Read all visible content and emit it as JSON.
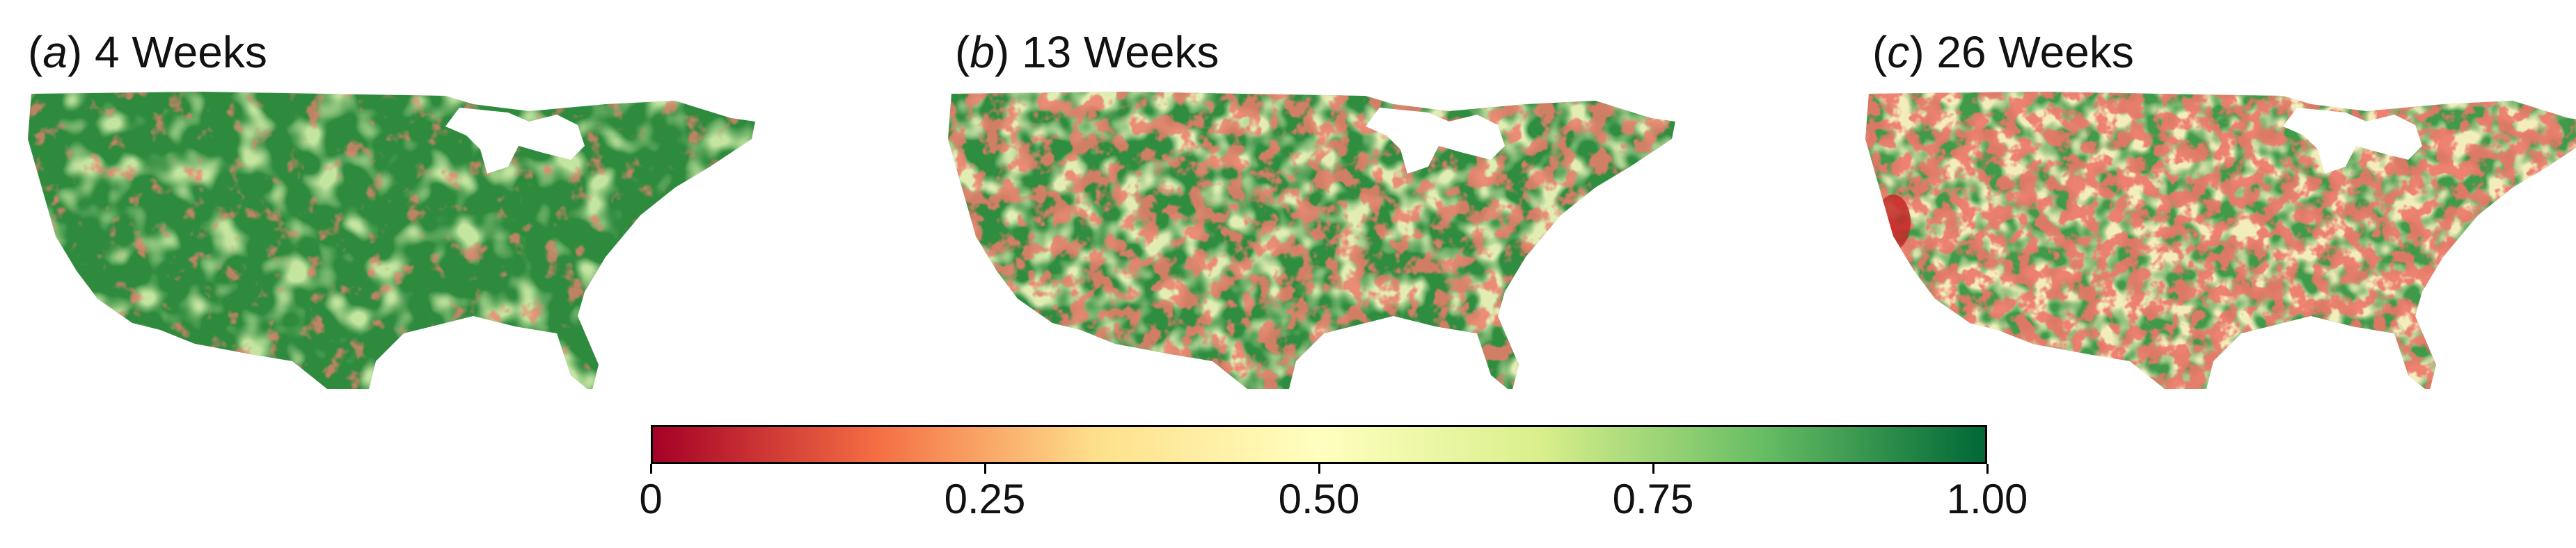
{
  "panels": [
    {
      "letter": "a",
      "label": " 4 Weeks"
    },
    {
      "letter": "b",
      "label": " 13 Weeks"
    },
    {
      "letter": "c",
      "label": " 26 Weeks"
    }
  ],
  "colorbar": {
    "ticks": [
      "0",
      "0.25",
      "0.50",
      "0.75",
      "1.00"
    ],
    "tick_values": [
      0,
      0.25,
      0.5,
      0.75,
      1.0
    ],
    "colormap": "RdYlGn",
    "stops": [
      "#a50026",
      "#f46d43",
      "#fee08b",
      "#ffffbf",
      "#d9ef8b",
      "#66bd63",
      "#006837"
    ]
  },
  "map_colors": {
    "dark_green": "#1a7a3a",
    "mid_green": "#3a9a48",
    "light_green": "#8cc860",
    "yellow": "#e8e080",
    "orange": "#f08a4a",
    "red": "#c8282a",
    "lake_white": "#ffffff"
  }
}
